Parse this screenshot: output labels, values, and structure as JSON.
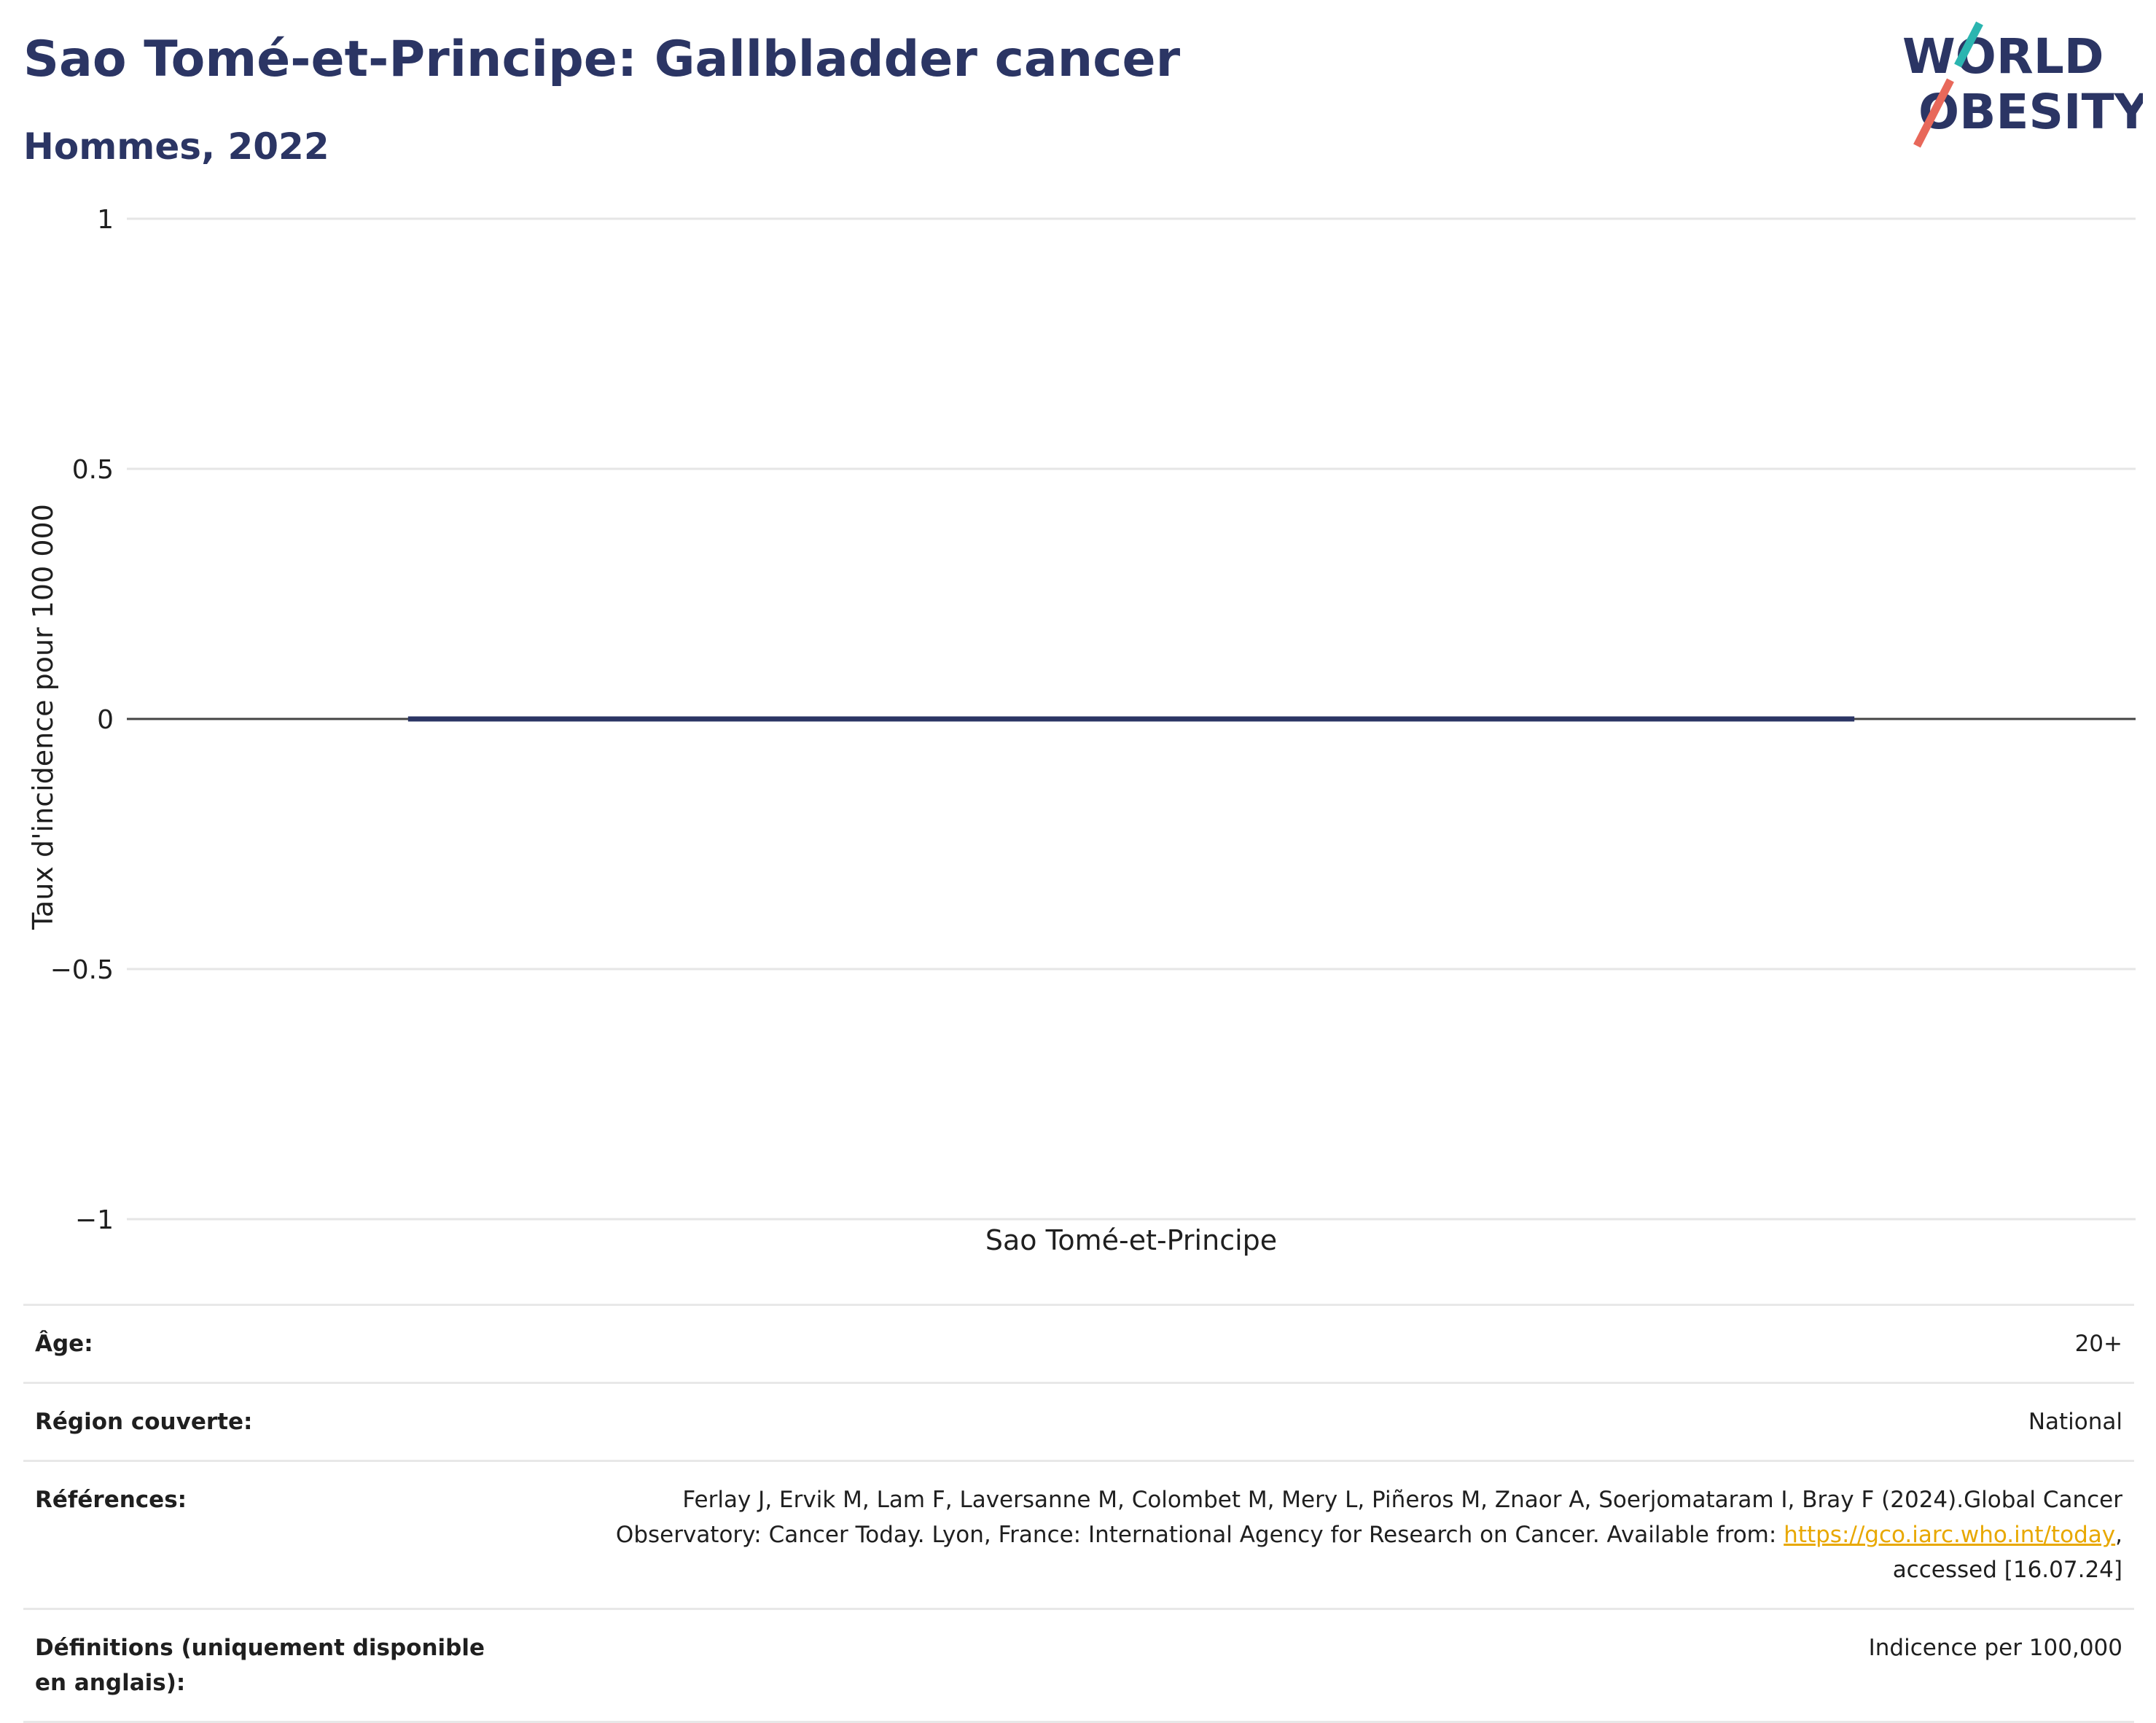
{
  "header": {
    "title": "Sao Tomé-et-Principe: Gallbladder cancer",
    "subtitle": "Hommes, 2022"
  },
  "logo": {
    "line1": "WORLD",
    "line2": "OBESITY",
    "text_color": "#2b3564",
    "stroke_colors": [
      "#2bb5b0",
      "#e8685a"
    ]
  },
  "chart_data": {
    "type": "bar",
    "categories": [
      "Sao Tomé-et-Principe"
    ],
    "values": [
      0
    ],
    "ylabel": "Taux d'incidence pour 100 000",
    "ylim": [
      -1,
      1
    ],
    "yticks": [
      1,
      0.5,
      0,
      -0.5,
      -1
    ],
    "ytick_labels": [
      "1",
      "0.5",
      "0",
      "−0.5",
      "−1"
    ],
    "grid": true,
    "bar_color": "#2b3564"
  },
  "info": {
    "rows": [
      {
        "key": "Âge:",
        "value": "20+"
      },
      {
        "key": "Région couverte:",
        "value": "National"
      },
      {
        "key": "Références:",
        "value_pre": "Ferlay J, Ervik M, Lam F, Laversanne M, Colombet M, Mery L, Piñeros M, Znaor A, Soerjomataram I, Bray F (2024).Global Cancer Observatory: Cancer Today. Lyon, France: International Agency for Research on Cancer. Available from: ",
        "link": "https://gco.iarc.who.int/today",
        "value_post": ", accessed [16.07.24]"
      },
      {
        "key": "Définitions (uniquement disponible en anglais):",
        "value": "Indicence per 100,000"
      }
    ]
  }
}
